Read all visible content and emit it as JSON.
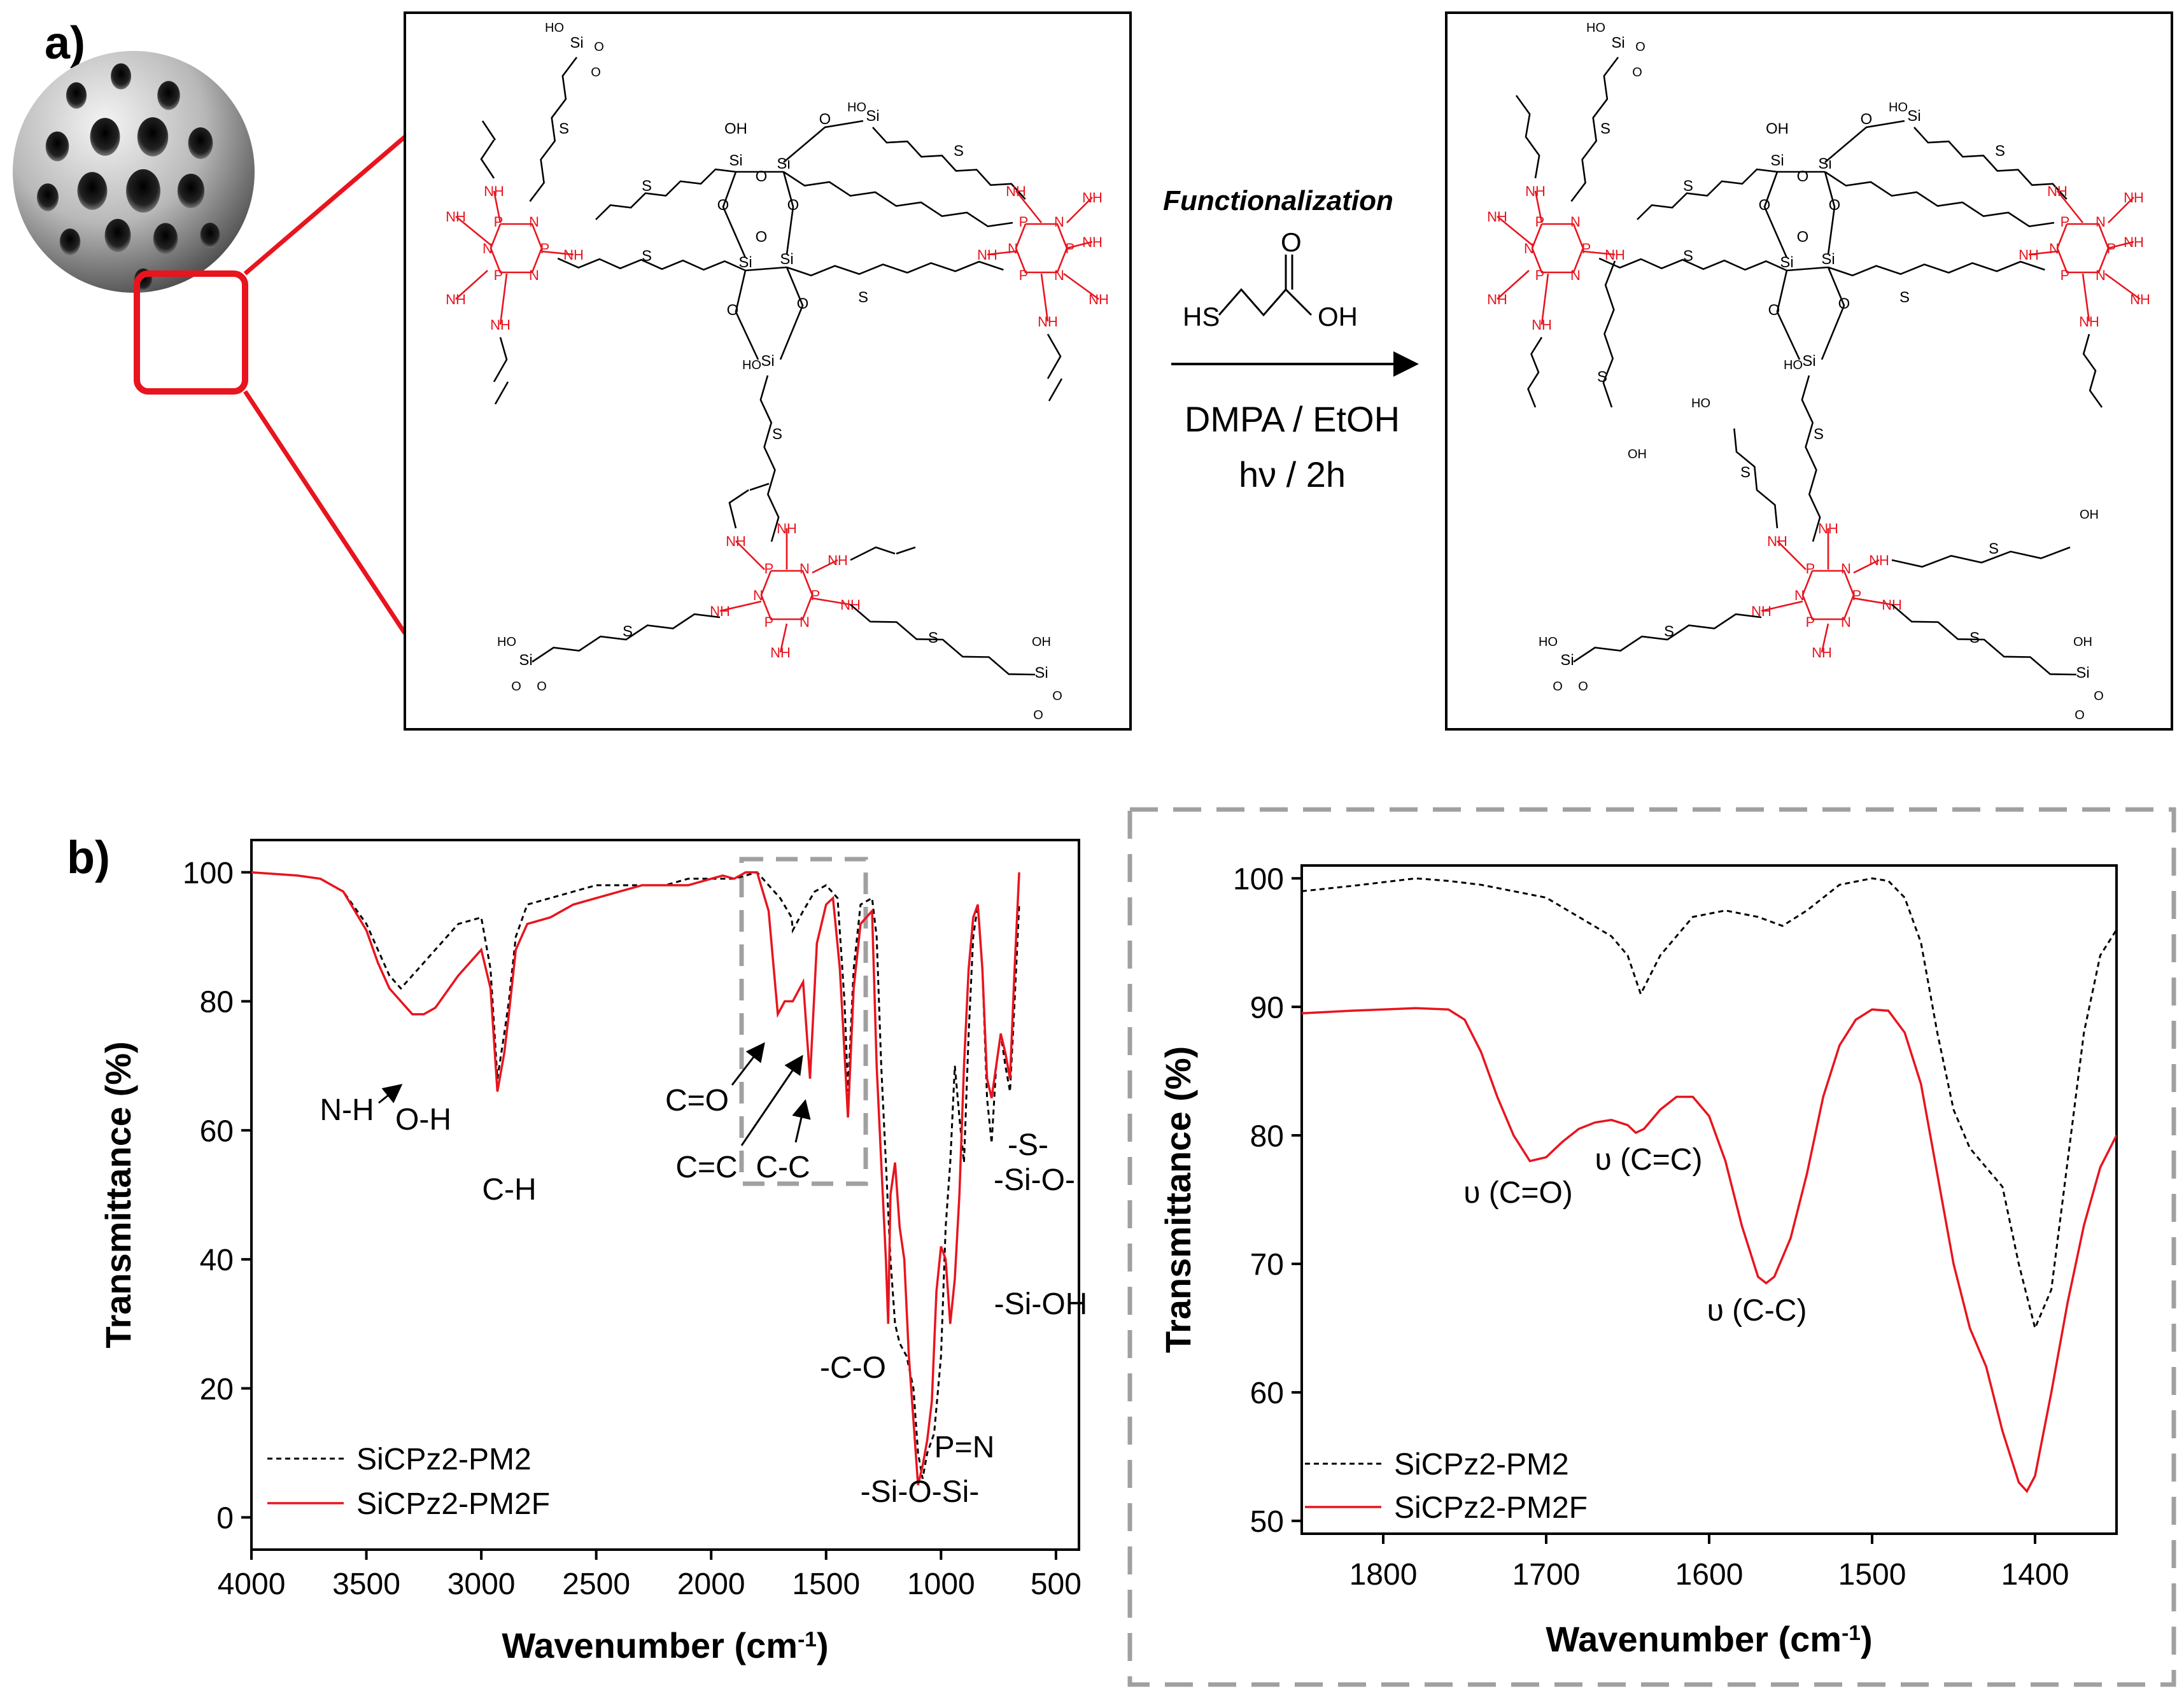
{
  "panel_a": {
    "label": "a)",
    "reaction": {
      "title": "Functionalization",
      "reagent_left": "HS",
      "reagent_carbonyl": "O",
      "reagent_right": "OH",
      "conditions_line1": "DMPA / EtOH",
      "conditions_line2": "hν / 2h"
    },
    "structure_labels": {
      "nh": "NH",
      "p": "P",
      "n": "N",
      "s": "S",
      "si": "Si",
      "o": "O",
      "ho": "HO",
      "oh": "OH"
    }
  },
  "panel_b": {
    "label": "b)"
  },
  "colors": {
    "red_series": "#e8141e",
    "black_series": "#000000",
    "highlight_box": "#a0a0a0",
    "structure_red": "#e8141e"
  },
  "chart_data": [
    {
      "type": "line",
      "title": "",
      "xlabel": "Wavenumber (cm-1)",
      "ylabel": "Transmittance (%)",
      "xlim": [
        4000,
        400
      ],
      "ylim": [
        -5,
        105
      ],
      "xticks": [
        4000,
        3500,
        3000,
        2500,
        2000,
        1500,
        1000,
        500
      ],
      "yticks": [
        0,
        20,
        40,
        60,
        80,
        100
      ],
      "legend": "bottom-left",
      "series": [
        {
          "name": "SiCPz2-PM2",
          "style": "dashed",
          "x": [
            4000,
            3800,
            3700,
            3600,
            3500,
            3450,
            3400,
            3350,
            3300,
            3200,
            3100,
            3000,
            2960,
            2930,
            2900,
            2880,
            2850,
            2800,
            2700,
            2600,
            2500,
            2400,
            2300,
            2200,
            2100,
            2000,
            1900,
            1800,
            1750,
            1700,
            1650,
            1645,
            1600,
            1550,
            1500,
            1450,
            1420,
            1405,
            1380,
            1350,
            1300,
            1280,
            1260,
            1240,
            1220,
            1200,
            1180,
            1150,
            1120,
            1100,
            1080,
            1060,
            1030,
            1000,
            980,
            960,
            940,
            920,
            900,
            880,
            860,
            840,
            820,
            800,
            780,
            760,
            740,
            720,
            700,
            680,
            660
          ],
          "y": [
            100,
            99.5,
            99,
            97,
            92,
            88,
            84,
            82,
            84,
            88,
            92,
            93,
            85,
            68,
            75,
            80,
            90,
            95,
            96,
            97,
            98,
            98,
            98,
            98,
            99,
            99,
            99,
            100,
            98,
            96,
            93,
            91,
            94,
            97,
            98,
            96,
            80,
            66,
            85,
            95,
            96,
            90,
            70,
            55,
            40,
            30,
            27,
            25,
            20,
            10,
            6,
            10,
            13,
            25,
            45,
            55,
            70,
            62,
            55,
            75,
            90,
            95,
            85,
            65,
            58,
            70,
            75,
            70,
            66,
            80,
            95
          ]
        },
        {
          "name": "SiCPz2-PM2F",
          "style": "solid",
          "x": [
            4000,
            3800,
            3700,
            3600,
            3500,
            3450,
            3400,
            3350,
            3300,
            3250,
            3200,
            3100,
            3000,
            2960,
            2930,
            2900,
            2880,
            2850,
            2800,
            2700,
            2600,
            2500,
            2400,
            2300,
            2200,
            2100,
            2000,
            1950,
            1900,
            1850,
            1800,
            1750,
            1710,
            1680,
            1645,
            1600,
            1570,
            1540,
            1500,
            1470,
            1440,
            1420,
            1405,
            1380,
            1350,
            1300,
            1280,
            1260,
            1240,
            1230,
            1220,
            1200,
            1180,
            1160,
            1140,
            1120,
            1100,
            1080,
            1060,
            1040,
            1020,
            1000,
            980,
            960,
            940,
            920,
            900,
            880,
            860,
            840,
            820,
            800,
            780,
            760,
            740,
            720,
            700,
            680,
            660
          ],
          "y": [
            100,
            99.5,
            99,
            97,
            91,
            86,
            82,
            80,
            78,
            78,
            79,
            84,
            88,
            82,
            66,
            72,
            78,
            88,
            92,
            93,
            95,
            96,
            97,
            98,
            98,
            98,
            99,
            99.5,
            99,
            100,
            100,
            94,
            78,
            80,
            80,
            83,
            68,
            89,
            95,
            96,
            85,
            72,
            62,
            82,
            92,
            94,
            70,
            55,
            40,
            30,
            50,
            55,
            45,
            40,
            25,
            15,
            5,
            8,
            12,
            18,
            35,
            42,
            40,
            30,
            37,
            50,
            70,
            85,
            93,
            95,
            85,
            68,
            65,
            70,
            75,
            72,
            68,
            85,
            100
          ]
        }
      ],
      "annotations": [
        "N-H",
        "O-H",
        "C-H",
        "C=O",
        "C=C",
        "C-C",
        "-S-",
        "-Si-O-",
        "-Si-OH",
        "-C-O",
        "P=N",
        "-Si-O-Si-"
      ]
    },
    {
      "type": "line",
      "title": "",
      "xlabel": "Wavenumber (cm-1)",
      "ylabel": "Transmittance (%)",
      "xlim": [
        1850,
        1350
      ],
      "ylim": [
        49,
        101
      ],
      "xticks": [
        1800,
        1700,
        1600,
        1500,
        1400
      ],
      "yticks": [
        50,
        60,
        70,
        80,
        90,
        100
      ],
      "legend": "bottom-left",
      "series": [
        {
          "name": "SiCPz2-PM2",
          "style": "dashed",
          "x": [
            1850,
            1820,
            1800,
            1780,
            1760,
            1740,
            1720,
            1700,
            1680,
            1660,
            1650,
            1642,
            1630,
            1610,
            1590,
            1570,
            1555,
            1540,
            1520,
            1500,
            1490,
            1480,
            1470,
            1460,
            1450,
            1440,
            1430,
            1420,
            1410,
            1400,
            1390,
            1380,
            1370,
            1360,
            1350
          ],
          "y": [
            99,
            99.4,
            99.7,
            100,
            99.8,
            99.5,
            99,
            98.5,
            97,
            95.5,
            94,
            91,
            94,
            97,
            97.5,
            97,
            96.3,
            97.5,
            99.5,
            100,
            99.8,
            98.5,
            95,
            88,
            82,
            79,
            77.5,
            76,
            70,
            65,
            68,
            78,
            88,
            94,
            96
          ]
        },
        {
          "name": "SiCPz2-PM2F",
          "style": "solid",
          "x": [
            1850,
            1820,
            1800,
            1780,
            1760,
            1750,
            1740,
            1730,
            1720,
            1710,
            1700,
            1690,
            1680,
            1670,
            1660,
            1650,
            1645,
            1640,
            1630,
            1620,
            1610,
            1600,
            1590,
            1580,
            1570,
            1565,
            1560,
            1550,
            1540,
            1530,
            1520,
            1510,
            1500,
            1490,
            1480,
            1470,
            1460,
            1450,
            1440,
            1430,
            1420,
            1410,
            1405,
            1400,
            1390,
            1380,
            1370,
            1360,
            1350
          ],
          "y": [
            89.5,
            89.7,
            89.8,
            89.9,
            89.8,
            89,
            86.5,
            83,
            80,
            78,
            78.3,
            79.5,
            80.5,
            81,
            81.2,
            80.8,
            80.2,
            80.5,
            82,
            83,
            83,
            81.5,
            78,
            73,
            69,
            68.5,
            69,
            72,
            77,
            83,
            87,
            89,
            89.8,
            89.7,
            88,
            84,
            77,
            70,
            65,
            62,
            57,
            53,
            52.3,
            53.5,
            60,
            67,
            73,
            77.5,
            80
          ]
        }
      ],
      "annotations": [
        "υ (C=O)",
        "υ (C=C)",
        "υ (C-C)"
      ]
    }
  ]
}
